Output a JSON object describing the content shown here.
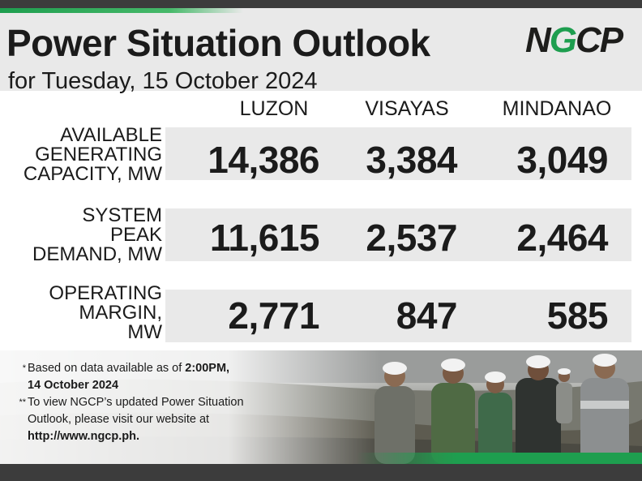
{
  "header": {
    "title": "Power Situation Outlook",
    "subtitle": "for Tuesday, 15 October 2024",
    "logo_text": "NGCP"
  },
  "columns": [
    "LUZON",
    "VISAYAS",
    "MINDANAO"
  ],
  "rows": [
    {
      "label_lines": [
        "AVAILABLE",
        "GENERATING",
        "CAPACITY, MW"
      ],
      "values": [
        "14,386",
        "3,384",
        "3,049"
      ]
    },
    {
      "label_lines": [
        "SYSTEM",
        "PEAK",
        "DEMAND, MW"
      ],
      "values": [
        "11,615",
        "2,537",
        "2,464"
      ]
    },
    {
      "label_lines": [
        "OPERATING",
        "MARGIN,",
        "MW"
      ],
      "values": [
        "2,771",
        "847",
        "585"
      ]
    }
  ],
  "notes": {
    "note1": {
      "mark": "*",
      "line1_text": "Based on data available as of ",
      "line1_bold": "2:00PM,",
      "line2_bold": "14 October 2024"
    },
    "note2": {
      "mark": "**",
      "line1": "To view NGCP’s updated Power Situation",
      "line2": "Outlook, please visit our website at",
      "line3_bold": "http://www.ngcp.ph."
    }
  },
  "colors": {
    "brand_green": "#1e9e4f",
    "dark_bar": "#3c3c3c",
    "panel_gray": "#e9e9e9"
  }
}
